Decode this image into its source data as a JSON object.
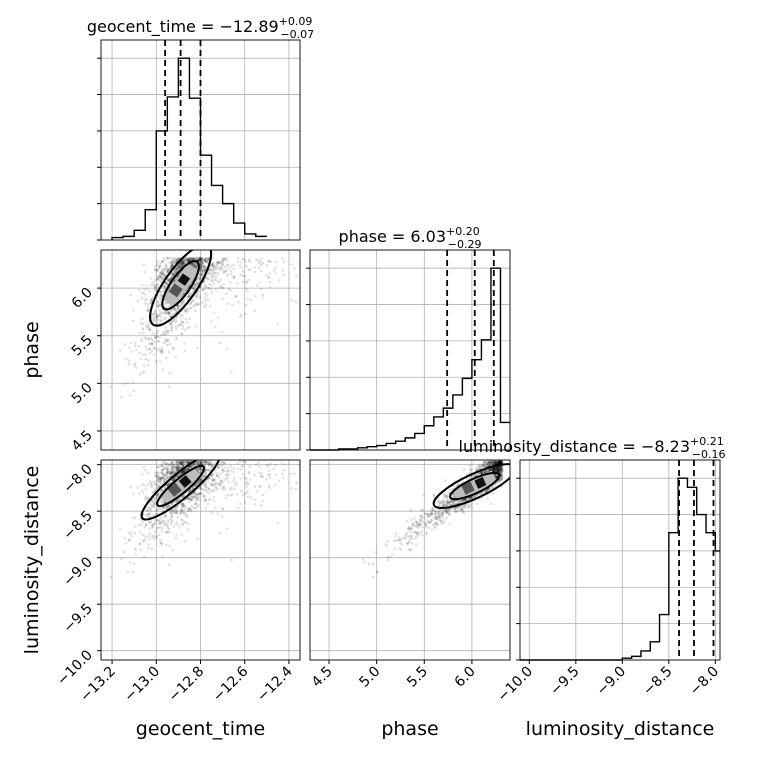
{
  "chart_data": {
    "type": "corner",
    "parameters": [
      {
        "name": "geocent_time",
        "xlabel": "geocent_time",
        "range": [
          -13.25,
          -12.35
        ],
        "ticks": [
          -13.2,
          -13.0,
          -12.8,
          -12.6,
          -12.4
        ],
        "tick_labels": [
          "−13.2",
          "−13.0",
          "−12.8",
          "−12.6",
          "−12.4"
        ],
        "title": {
          "text": "geocent_time = −12.89",
          "plus": "+0.09",
          "minus": "−0.07"
        },
        "quantiles": [
          -12.96,
          -12.89,
          -12.8
        ],
        "hist_edges": [
          -13.2,
          -13.15,
          -13.1,
          -13.05,
          -13.0,
          -12.95,
          -12.9,
          -12.85,
          -12.8,
          -12.75,
          -12.7,
          -12.65,
          -12.6,
          -12.55,
          -12.5
        ],
        "hist_counts": [
          2,
          3,
          8,
          25,
          90,
          118,
          150,
          117,
          70,
          45,
          30,
          14,
          5,
          3
        ]
      },
      {
        "name": "phase",
        "xlabel": "phase",
        "ylabel": "phase",
        "range": [
          4.3,
          6.4
        ],
        "ticks": [
          4.5,
          5.0,
          5.5,
          6.0
        ],
        "tick_labels": [
          "4.5",
          "5.0",
          "5.5",
          "6.0"
        ],
        "title": {
          "text": "phase = 6.03",
          "plus": "+0.20",
          "minus": "−0.29"
        },
        "quantiles": [
          5.74,
          6.03,
          6.23
        ],
        "hist_edges": [
          4.3,
          4.4,
          4.5,
          4.6,
          4.7,
          4.8,
          4.9,
          5.0,
          5.1,
          5.2,
          5.3,
          5.4,
          5.5,
          5.6,
          5.7,
          5.8,
          5.9,
          6.0,
          6.1,
          6.2,
          6.3,
          6.4
        ],
        "hist_counts": [
          0,
          0,
          0,
          1,
          1,
          2,
          3,
          4,
          6,
          8,
          11,
          15,
          22,
          30,
          38,
          50,
          65,
          82,
          100,
          165,
          25
        ]
      },
      {
        "name": "luminosity_distance",
        "xlabel": "luminosity_distance",
        "ylabel": "luminosity_distance",
        "range": [
          -10.1,
          -7.95
        ],
        "ticks": [
          -10.0,
          -9.5,
          -9.0,
          -8.5,
          -8.0
        ],
        "tick_labels": [
          "−10.0",
          "−9.5",
          "−9.0",
          "−8.5",
          "−8.0"
        ],
        "title": {
          "text": "luminosity_distance = −8.23",
          "plus": "+0.21",
          "minus": "−0.16"
        },
        "quantiles": [
          -8.39,
          -8.23,
          -8.02
        ],
        "hist_edges": [
          -10.1,
          -10.0,
          -9.9,
          -9.8,
          -9.7,
          -9.6,
          -9.5,
          -9.4,
          -9.3,
          -9.2,
          -9.1,
          -9.0,
          -8.9,
          -8.8,
          -8.7,
          -8.6,
          -8.5,
          -8.4,
          -8.3,
          -8.2,
          -8.1,
          -8.0,
          -7.95
        ],
        "hist_counts": [
          0,
          0,
          0,
          0,
          0,
          0,
          0,
          0,
          0,
          0,
          0,
          1,
          2,
          5,
          10,
          25,
          70,
          100,
          95,
          80,
          70,
          60
        ]
      }
    ],
    "grid": true
  }
}
